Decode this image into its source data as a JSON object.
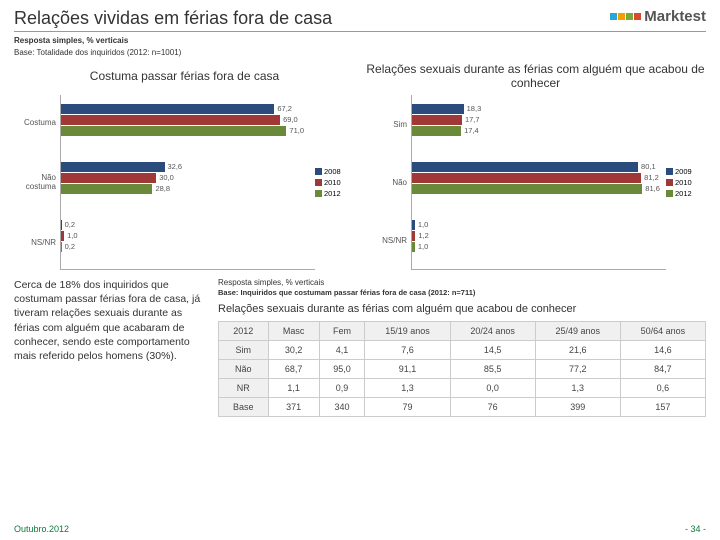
{
  "header": {
    "title": "Relações vividas em férias fora de casa",
    "logo_text": "Marktest",
    "logo_colors": [
      "#2aa5d9",
      "#f0a000",
      "#7aa83c",
      "#d94a2a"
    ]
  },
  "subtitle": "Resposta simples, % verticais",
  "base": "Base: Totalidade dos inquiridos (2012: n=1001)",
  "chart1": {
    "title": "Costuma passar férias fora de casa",
    "categories": [
      "Costuma",
      "Não costuma",
      "NS/NR"
    ],
    "series": [
      {
        "year": "2008",
        "color": "#2a4b7c",
        "values": [
          67.2,
          32.6,
          0.2
        ]
      },
      {
        "year": "2010",
        "color": "#a03838",
        "values": [
          69.0,
          30.0,
          1.0
        ]
      },
      {
        "year": "2012",
        "color": "#6a8a3a",
        "values": [
          71.0,
          28.8,
          0.2
        ]
      }
    ],
    "xmax": 80
  },
  "chart2": {
    "title": "Relações sexuais durante as férias com alguém que acabou de conhecer",
    "categories": [
      "Sim",
      "Não",
      "NS/NR"
    ],
    "series": [
      {
        "year": "2009",
        "color": "#2a4b7c",
        "values": [
          18.3,
          80.1,
          1.0
        ]
      },
      {
        "year": "2010",
        "color": "#a03838",
        "values": [
          17.7,
          81.2,
          1.2
        ]
      },
      {
        "year": "2012",
        "color": "#6a8a3a",
        "values": [
          17.4,
          81.6,
          1.0
        ]
      }
    ],
    "xmax": 90
  },
  "paragraph": "Cerca de 18% dos inquiridos que costumam passar férias fora de casa, já tiveram relações sexuais durante as férias com alguém que acabaram de conhecer, sendo este comportamento mais referido pelos homens (30%).",
  "table_section": {
    "subtitle": "Resposta simples, % verticais",
    "base": "Base: Inquiridos que costumam passar férias fora de casa (2012: n=711)",
    "title": "Relações sexuais durante as férias com alguém que acabou de conhecer",
    "columns": [
      "2012",
      "Masc",
      "Fem",
      "15/19 anos",
      "20/24 anos",
      "25/49 anos",
      "50/64 anos"
    ],
    "rows": [
      [
        "Sim",
        "30,2",
        "4,1",
        "7,6",
        "14,5",
        "21,6",
        "14,6"
      ],
      [
        "Não",
        "68,7",
        "95,0",
        "91,1",
        "85,5",
        "77,2",
        "84,7"
      ],
      [
        "NR",
        "1,1",
        "0,9",
        "1,3",
        "0,0",
        "1,3",
        "0,6"
      ],
      [
        "Base",
        "371",
        "340",
        "79",
        "76",
        "399",
        "157"
      ]
    ]
  },
  "footer": {
    "left": "Outubro.2012",
    "right": "- 34 -"
  }
}
